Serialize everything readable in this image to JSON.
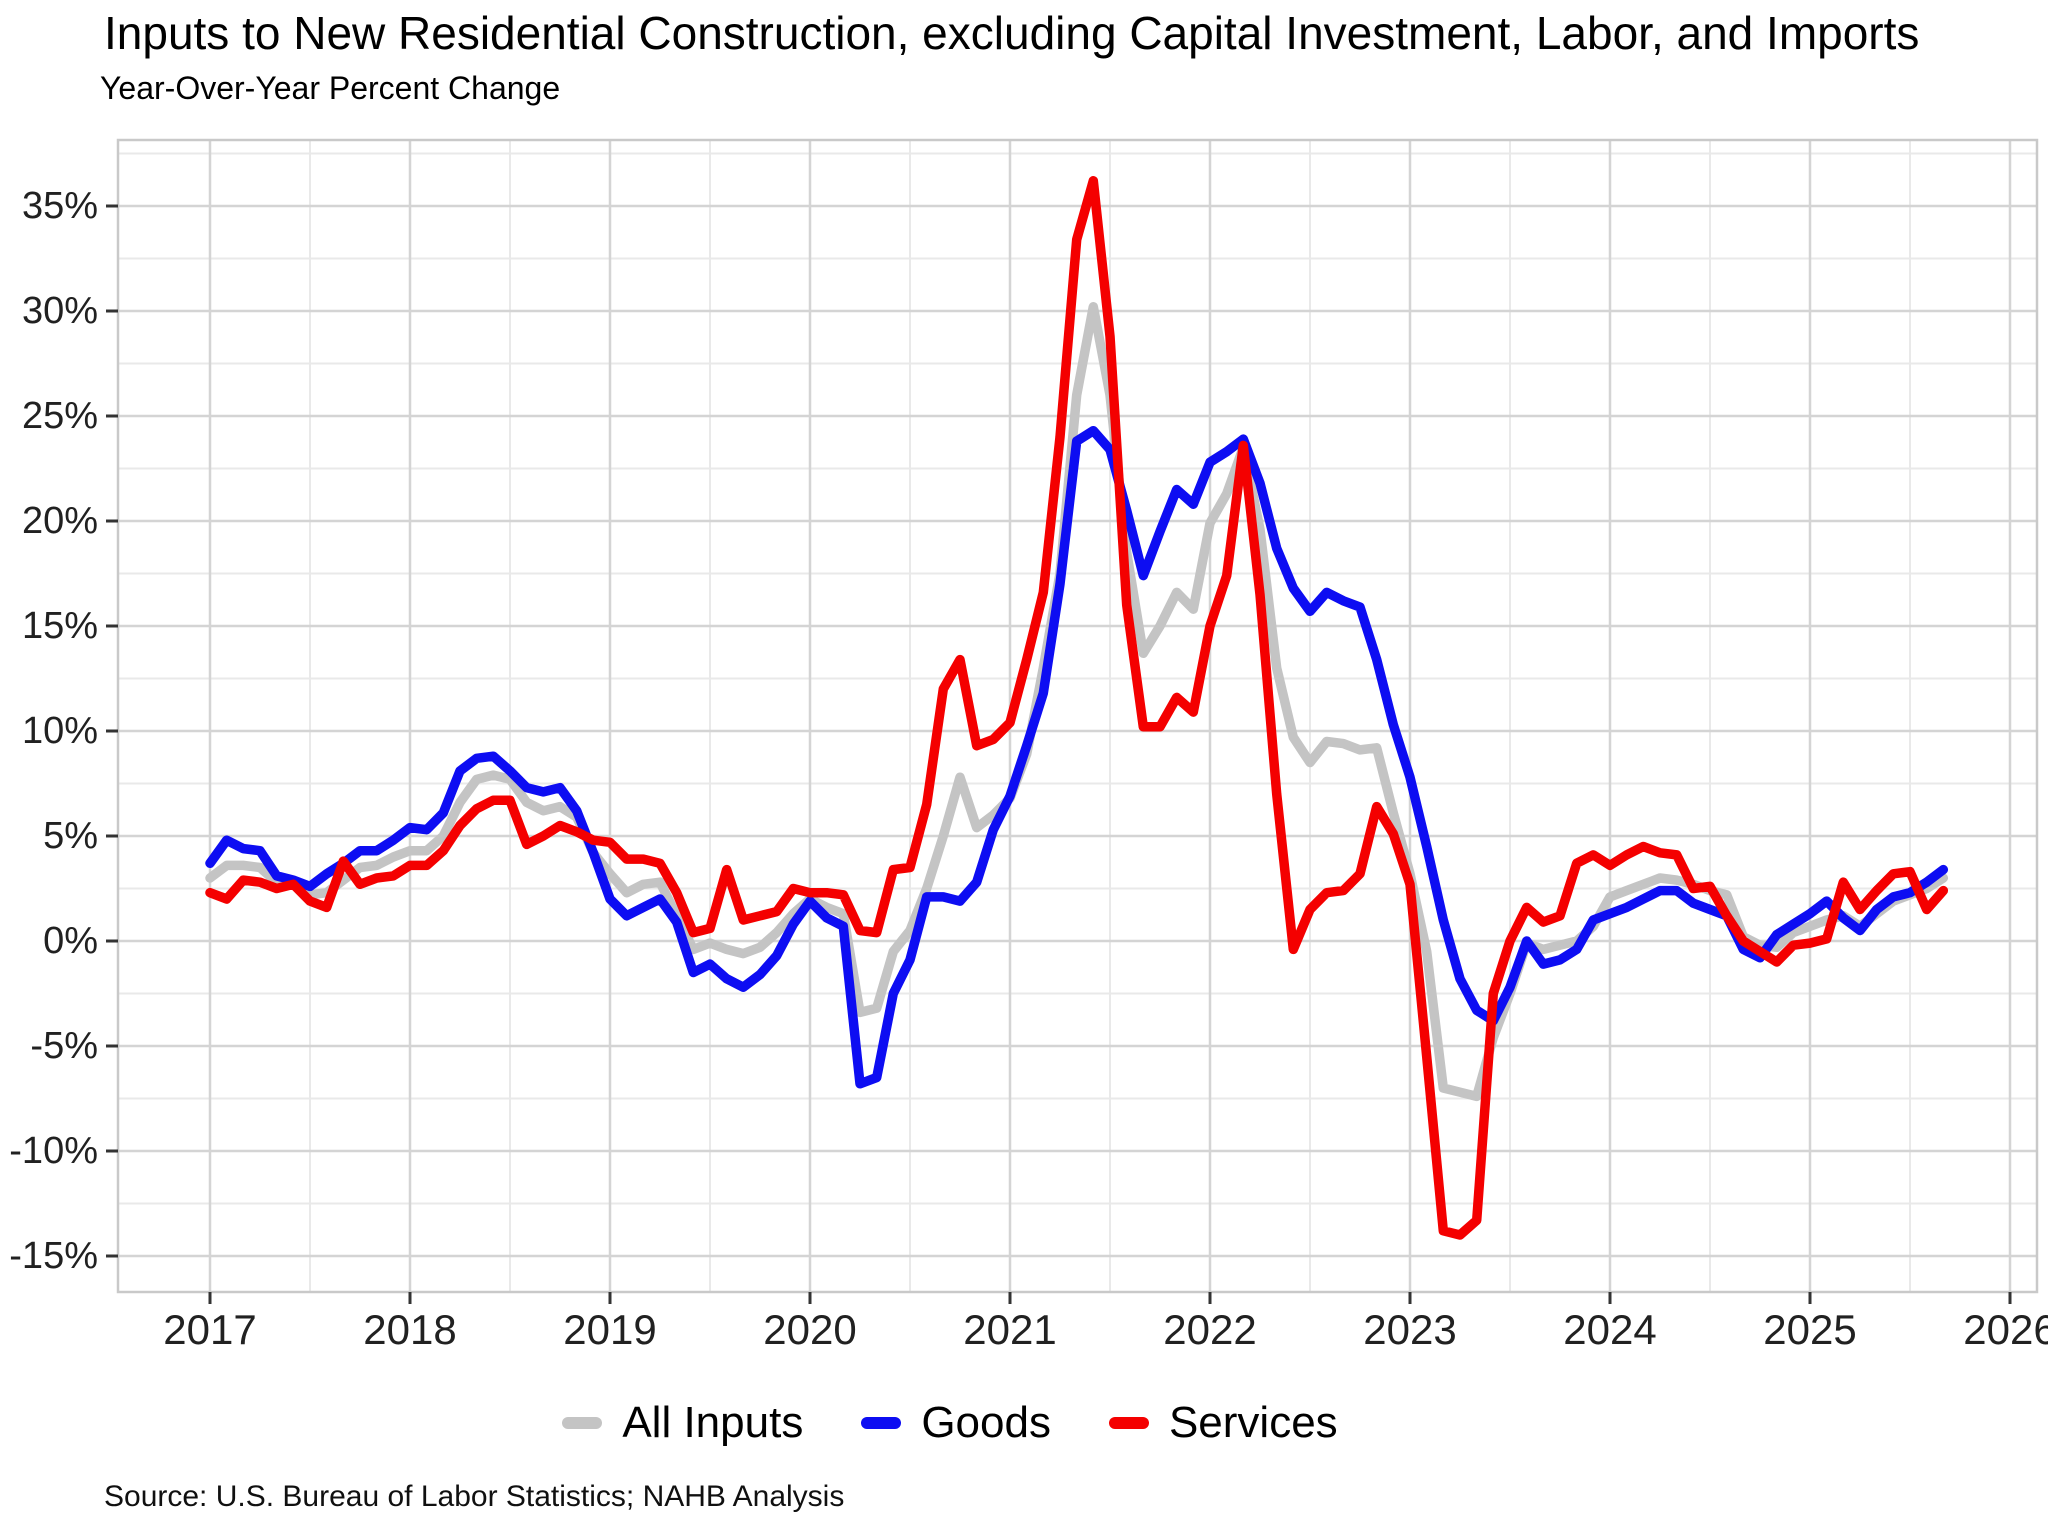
{
  "title": "Inputs to New Residential Construction, excluding Capital Investment, Labor, and Imports",
  "subtitle": "Year-Over-Year Percent Change",
  "source": "Source: U.S. Bureau of Labor Statistics; NAHB Analysis",
  "colors": {
    "all_inputs": "#C4C4C4",
    "goods": "#0D0DF2",
    "services": "#F40000",
    "grid_major": "#D4D4D4",
    "grid_minor": "#E9E9E9",
    "panel_border": "#C9C9C9",
    "tick": "#333333",
    "axis_text": "#212121"
  },
  "chart_data": {
    "type": "line",
    "title": "Inputs to New Residential Construction, excluding Capital Investment, Labor, and Imports",
    "subtitle": "Year-Over-Year Percent Change",
    "x_unit": "month",
    "x_start": "2017-01",
    "x_end": "2025-09",
    "x_tick_years": [
      2017,
      2018,
      2019,
      2020,
      2021,
      2022,
      2023,
      2024,
      2025,
      2026
    ],
    "ylabel_format": "percent",
    "ylim": [
      -16.714,
      38.143
    ],
    "y_major_ticks": [
      -15,
      -10,
      -5,
      0,
      5,
      10,
      15,
      20,
      25,
      30,
      35
    ],
    "y_minor_step": 2.5,
    "grid": {
      "major": true,
      "minor": true
    },
    "legend_position": "bottom",
    "series": [
      {
        "name": "All Inputs",
        "color": "#C4C4C4",
        "values": [
          3.0,
          3.6,
          3.6,
          3.5,
          2.8,
          2.7,
          2.2,
          2.3,
          2.9,
          3.5,
          3.6,
          4.0,
          4.3,
          4.3,
          5.0,
          6.6,
          7.7,
          7.9,
          7.7,
          6.6,
          6.2,
          6.4,
          5.9,
          4.2,
          3.2,
          2.3,
          2.7,
          2.8,
          1.2,
          -0.4,
          -0.1,
          -0.4,
          -0.6,
          -0.3,
          0.4,
          1.3,
          2.0,
          1.6,
          1.3,
          -3.4,
          -3.2,
          -0.5,
          0.5,
          2.5,
          5.0,
          7.8,
          5.4,
          6.0,
          6.8,
          8.9,
          13.0,
          17.5,
          26.0,
          30.2,
          26.0,
          18.5,
          13.7,
          15.0,
          16.6,
          15.8,
          19.9,
          21.3,
          23.5,
          19.6,
          13.0,
          9.7,
          8.5,
          9.5,
          9.4,
          9.1,
          9.2,
          6.1,
          3.2,
          -0.5,
          -7.0,
          -7.2,
          -7.4,
          -4.6,
          -2.5,
          -0.1,
          -0.4,
          -0.2,
          0.0,
          0.7,
          2.1,
          2.4,
          2.7,
          3.0,
          2.9,
          2.7,
          2.4,
          2.2,
          0.2,
          -0.2,
          -0.3,
          0.4,
          0.7,
          1.0,
          1.2,
          0.7,
          1.3,
          1.9,
          2.2,
          2.5,
          3.0
        ]
      },
      {
        "name": "Goods",
        "color": "#0D0DF2",
        "values": [
          3.7,
          4.8,
          4.4,
          4.3,
          3.1,
          2.9,
          2.6,
          3.2,
          3.7,
          4.3,
          4.3,
          4.8,
          5.4,
          5.3,
          6.1,
          8.1,
          8.7,
          8.8,
          8.1,
          7.3,
          7.1,
          7.3,
          6.2,
          4.2,
          2.0,
          1.2,
          1.6,
          2.0,
          0.9,
          -1.5,
          -1.1,
          -1.8,
          -2.2,
          -1.6,
          -0.7,
          0.8,
          1.9,
          1.1,
          0.7,
          -6.8,
          -6.5,
          -2.5,
          -0.9,
          2.1,
          2.1,
          1.9,
          2.8,
          5.3,
          6.9,
          9.3,
          11.8,
          17.0,
          23.8,
          24.3,
          23.4,
          20.5,
          17.4,
          19.5,
          21.5,
          20.8,
          22.8,
          23.3,
          23.9,
          21.8,
          18.7,
          16.8,
          15.7,
          16.6,
          16.2,
          15.9,
          13.4,
          10.3,
          7.8,
          4.5,
          1.0,
          -1.8,
          -3.3,
          -3.8,
          -2.2,
          0.0,
          -1.1,
          -0.9,
          -0.4,
          1.0,
          1.3,
          1.6,
          2.0,
          2.4,
          2.4,
          1.8,
          1.5,
          1.2,
          -0.4,
          -0.8,
          0.3,
          0.8,
          1.3,
          1.9,
          1.1,
          0.5,
          1.5,
          2.1,
          2.3,
          2.8,
          3.4
        ]
      },
      {
        "name": "Services",
        "color": "#F40000",
        "values": [
          2.3,
          2.0,
          2.9,
          2.8,
          2.5,
          2.7,
          1.9,
          1.6,
          3.8,
          2.7,
          3.0,
          3.1,
          3.6,
          3.6,
          4.3,
          5.5,
          6.3,
          6.7,
          6.7,
          4.6,
          5.0,
          5.5,
          5.2,
          4.8,
          4.7,
          3.9,
          3.9,
          3.7,
          2.3,
          0.4,
          0.6,
          3.4,
          1.0,
          1.2,
          1.4,
          2.5,
          2.3,
          2.3,
          2.2,
          0.5,
          0.4,
          3.4,
          3.5,
          6.5,
          12.0,
          13.4,
          9.3,
          9.6,
          10.4,
          13.4,
          16.6,
          24.0,
          33.4,
          36.2,
          28.8,
          16.0,
          10.2,
          10.2,
          11.6,
          10.9,
          15.0,
          17.4,
          23.6,
          16.5,
          7.0,
          -0.4,
          1.5,
          2.3,
          2.4,
          3.2,
          6.4,
          5.1,
          2.7,
          -5.5,
          -13.8,
          -14.0,
          -13.3,
          -2.5,
          0.0,
          1.6,
          0.9,
          1.2,
          3.7,
          4.1,
          3.6,
          4.1,
          4.5,
          4.2,
          4.1,
          2.5,
          2.6,
          1.2,
          0.0,
          -0.5,
          -1.0,
          -0.2,
          -0.1,
          0.1,
          2.8,
          1.5,
          2.4,
          3.2,
          3.3,
          1.5,
          2.4
        ]
      }
    ]
  }
}
